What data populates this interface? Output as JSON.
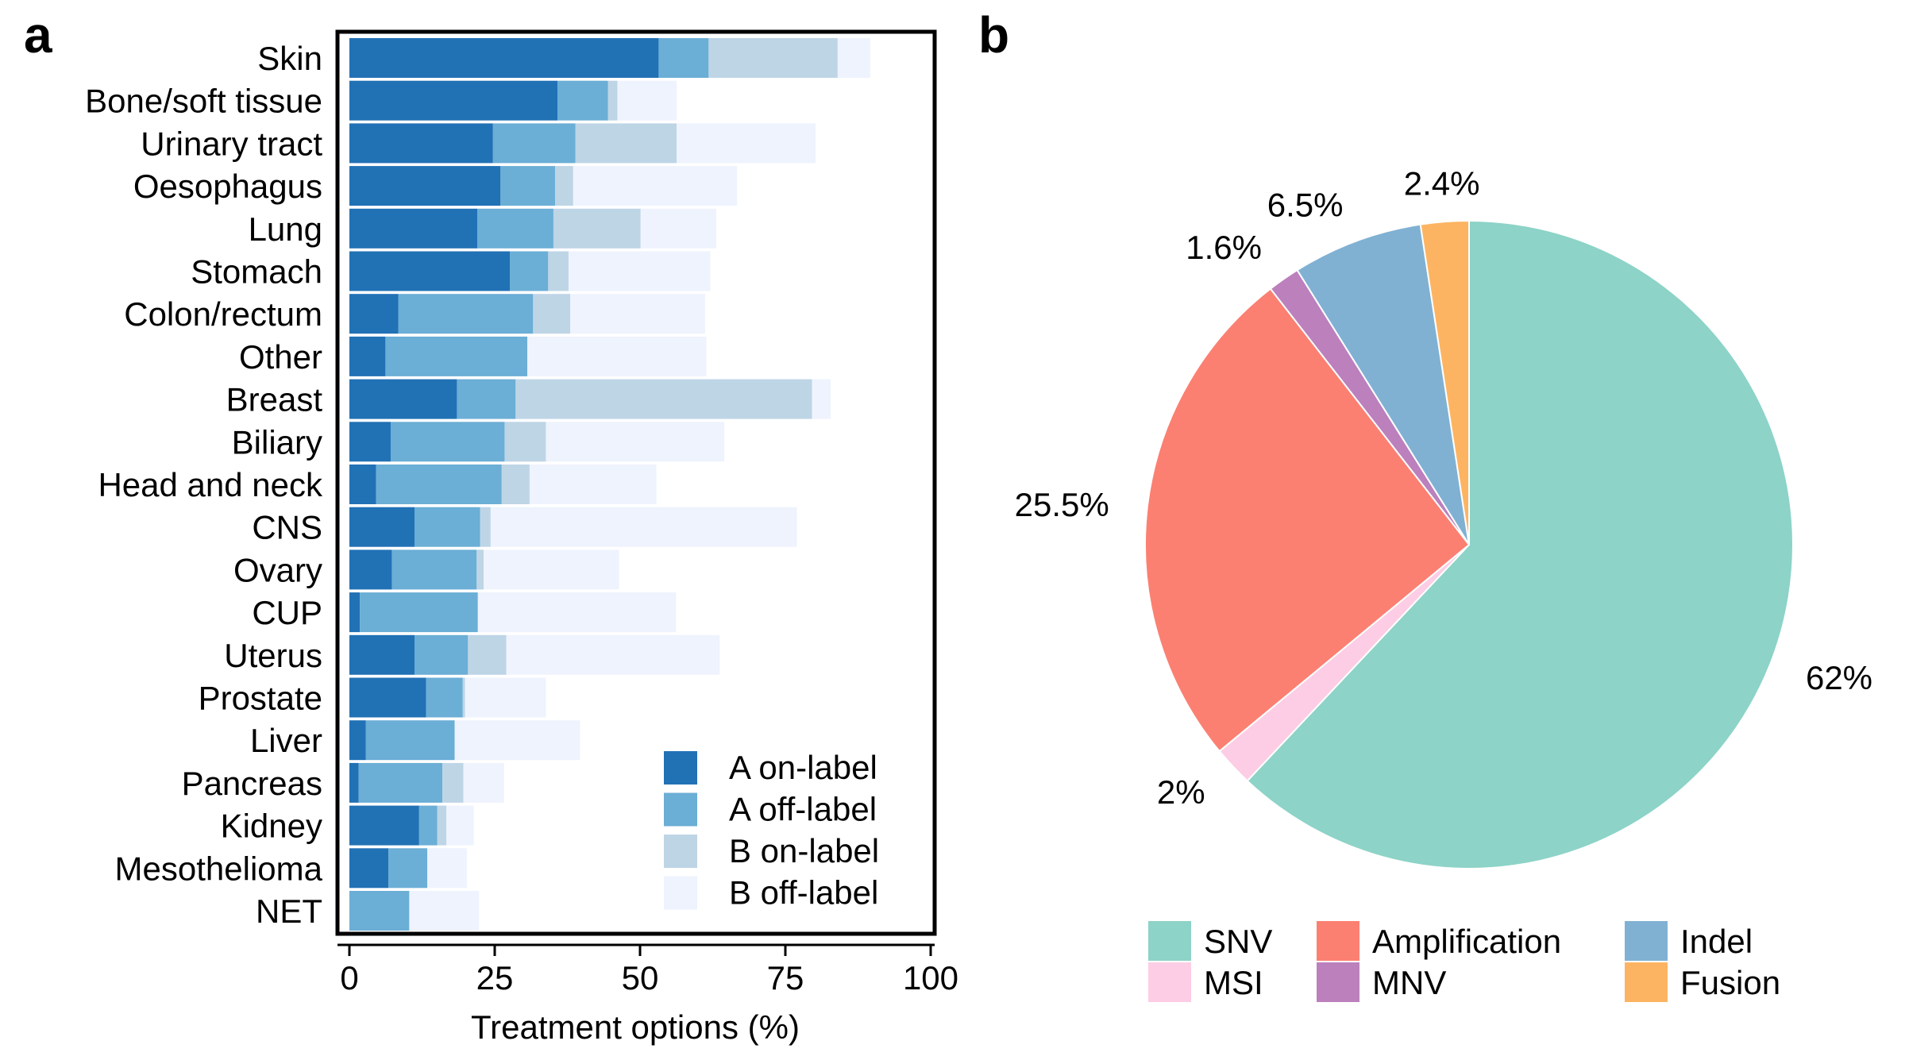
{
  "panels": {
    "a": "a",
    "b": "b"
  },
  "chart_data": [
    {
      "type": "bar",
      "orientation": "horizontal",
      "stacked": true,
      "categories": [
        "Skin",
        "Bone/soft tissue",
        "Urinary tract",
        "Oesophagus",
        "Lung",
        "Stomach",
        "Colon/rectum",
        "Other",
        "Breast",
        "Biliary",
        "Head and neck",
        "CNS",
        "Ovary",
        "CUP",
        "Uterus",
        "Prostate",
        "Liver",
        "Pancreas",
        "Kidney",
        "Mesothelioma",
        "NET"
      ],
      "series": [
        {
          "name": "A on-label",
          "color": "#2171b5",
          "values": [
            53.2,
            35.8,
            24.7,
            26.0,
            22.0,
            27.6,
            8.4,
            6.2,
            18.5,
            7.1,
            4.6,
            11.2,
            7.3,
            1.8,
            11.2,
            13.2,
            2.8,
            1.6,
            12.0,
            6.7,
            0.0
          ]
        },
        {
          "name": "A off-label",
          "color": "#6baed6",
          "values": [
            8.6,
            8.7,
            14.2,
            9.4,
            13.1,
            6.6,
            23.2,
            24.4,
            10.1,
            19.6,
            21.6,
            11.3,
            14.6,
            20.3,
            9.2,
            6.3,
            15.3,
            14.4,
            3.1,
            6.7,
            10.3
          ]
        },
        {
          "name": "B on-label",
          "color": "#bed5e6",
          "values": [
            22.2,
            1.6,
            17.4,
            3.1,
            15.0,
            3.5,
            6.4,
            0.0,
            51.0,
            7.1,
            4.8,
            1.8,
            1.2,
            0.0,
            6.6,
            0.4,
            0.0,
            3.6,
            1.6,
            0.0,
            0.0
          ]
        },
        {
          "name": "B off-label",
          "color": "#eef3fd",
          "values": [
            5.6,
            10.2,
            23.9,
            28.2,
            13.0,
            24.4,
            23.2,
            30.8,
            3.2,
            30.7,
            21.8,
            52.7,
            23.3,
            34.1,
            36.7,
            13.9,
            21.6,
            7.0,
            4.7,
            6.8,
            12.0
          ]
        }
      ],
      "xlabel": "Treatment options (%)",
      "xlim": [
        0,
        100
      ],
      "xticks": [
        0,
        25,
        50,
        75,
        100
      ],
      "legend_position": "bottom-right"
    },
    {
      "type": "pie",
      "slices": [
        {
          "name": "SNV",
          "value": 62,
          "label": "62%",
          "color": "#8dd3c7"
        },
        {
          "name": "MSI",
          "value": 2,
          "label": "2%",
          "color": "#fccde5"
        },
        {
          "name": "Amplification",
          "value": 25.5,
          "label": "25.5%",
          "color": "#fb8072"
        },
        {
          "name": "MNV",
          "value": 1.6,
          "label": "1.6%",
          "color": "#bc80bd"
        },
        {
          "name": "Indel",
          "value": 6.5,
          "label": "6.5%",
          "color": "#80b1d3"
        },
        {
          "name": "Fusion",
          "value": 2.4,
          "label": "2.4%",
          "color": "#fdb462"
        }
      ],
      "legend_order": [
        "SNV",
        "MSI",
        "Amplification",
        "MNV",
        "Indel",
        "Fusion"
      ],
      "legend_position": "bottom"
    }
  ]
}
